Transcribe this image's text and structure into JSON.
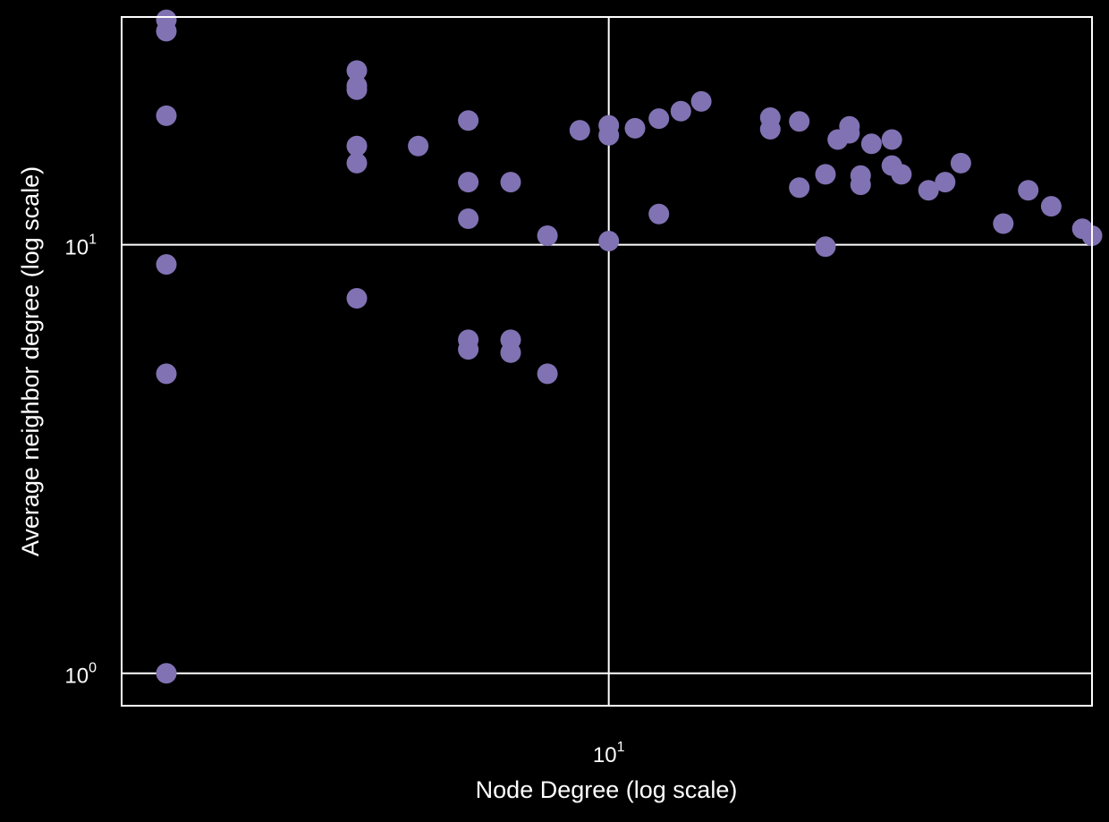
{
  "chart_data": {
    "type": "scatter",
    "title": "",
    "xlabel": "Node Degree (log scale)",
    "ylabel": "Average neighbor degree (log scale)",
    "xscale": "log",
    "yscale": "log",
    "xlim": [
      1.7,
      58
    ],
    "ylim": [
      0.84,
      34
    ],
    "grid": true,
    "background": "#000000",
    "foreground": "#ffffff",
    "marker_color": "#8172b3",
    "x_ticks": [
      {
        "base": "10",
        "exp": "1",
        "value": 10
      }
    ],
    "y_ticks": [
      {
        "base": "10",
        "exp": "0",
        "value": 1
      },
      {
        "base": "10",
        "exp": "1",
        "value": 10
      }
    ],
    "points": [
      [
        2,
        33.5
      ],
      [
        2,
        31.5
      ],
      [
        2,
        20
      ],
      [
        2,
        9
      ],
      [
        2,
        5
      ],
      [
        2,
        1
      ],
      [
        4,
        25.5
      ],
      [
        4,
        23.5
      ],
      [
        4,
        23
      ],
      [
        4,
        17
      ],
      [
        4,
        15.5
      ],
      [
        4,
        7.5
      ],
      [
        5,
        17
      ],
      [
        6,
        19.5
      ],
      [
        6,
        14
      ],
      [
        6,
        11.5
      ],
      [
        6,
        6
      ],
      [
        6,
        5.7
      ],
      [
        7,
        14
      ],
      [
        7,
        6
      ],
      [
        7,
        5.6
      ],
      [
        8,
        10.5
      ],
      [
        8,
        5
      ],
      [
        9,
        18.5
      ],
      [
        10,
        18
      ],
      [
        10,
        19
      ],
      [
        10,
        10.2
      ],
      [
        11,
        18.7
      ],
      [
        12,
        11.8
      ],
      [
        12,
        19.7
      ],
      [
        13,
        20.5
      ],
      [
        14,
        21.6
      ],
      [
        18,
        19.8
      ],
      [
        18,
        18.6
      ],
      [
        20,
        19.4
      ],
      [
        20,
        13.6
      ],
      [
        22,
        14.6
      ],
      [
        22,
        9.9
      ],
      [
        23,
        17.6
      ],
      [
        24,
        18.2
      ],
      [
        24,
        18.9
      ],
      [
        25,
        14.5
      ],
      [
        25,
        13.8
      ],
      [
        26,
        17.2
      ],
      [
        28,
        17.6
      ],
      [
        28,
        15.3
      ],
      [
        29,
        14.6
      ],
      [
        32,
        13.4
      ],
      [
        34,
        14
      ],
      [
        36,
        15.5
      ],
      [
        42,
        11.2
      ],
      [
        46,
        13.4
      ],
      [
        50,
        12.3
      ],
      [
        56,
        10.9
      ],
      [
        58,
        10.5
      ]
    ]
  }
}
